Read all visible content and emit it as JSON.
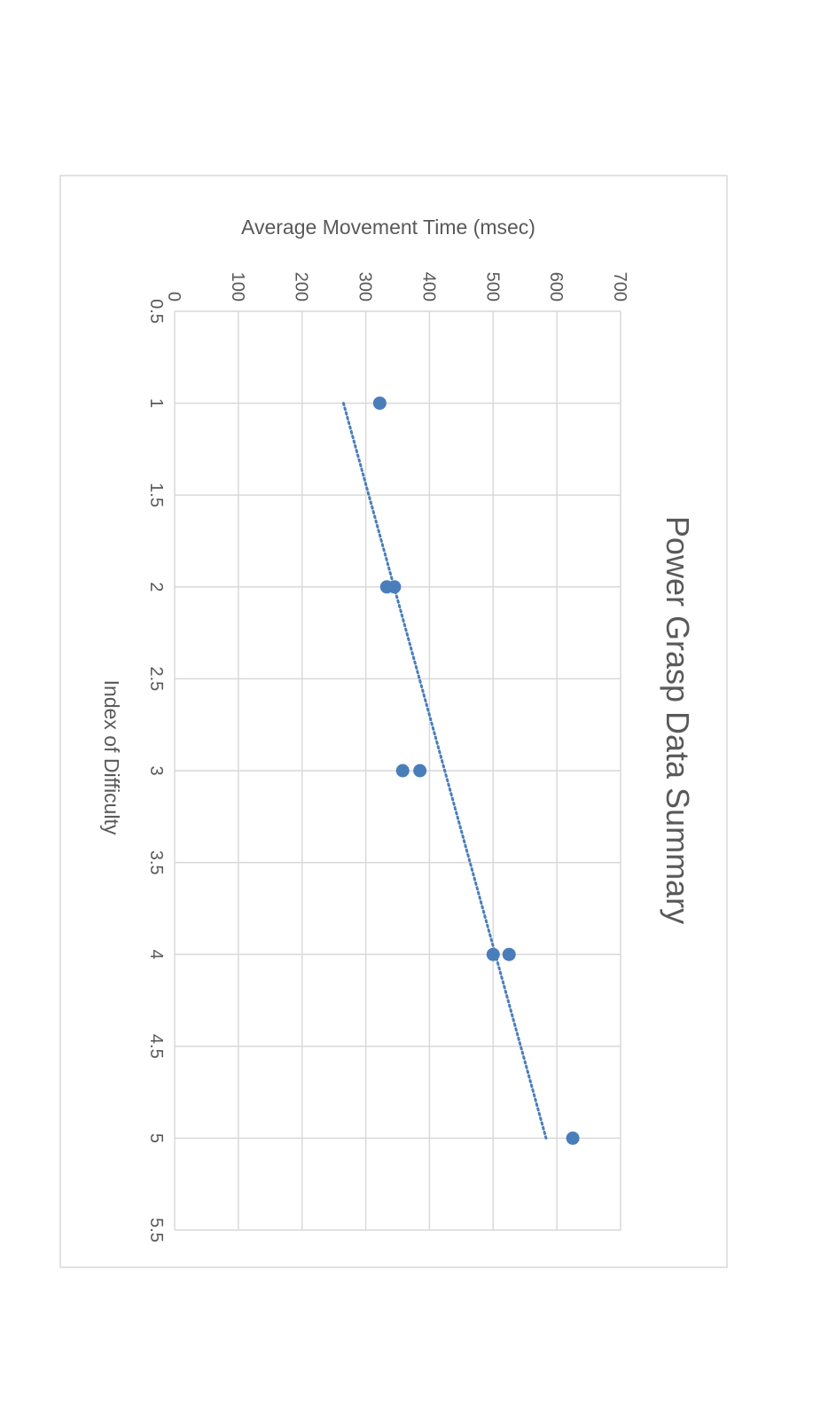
{
  "chart_data": {
    "type": "scatter",
    "title": "Power Grasp Data Summary",
    "xlabel": "Index of Difficulty",
    "ylabel": "Average Movement Time (msec)",
    "xlim": [
      0.5,
      5.5
    ],
    "ylim": [
      0,
      700
    ],
    "x_ticks": [
      "0.5",
      "1",
      "1.5",
      "2",
      "2.5",
      "3",
      "3.5",
      "4",
      "4.5",
      "5",
      "5.5"
    ],
    "y_ticks": [
      "0",
      "100",
      "200",
      "300",
      "400",
      "500",
      "600",
      "700"
    ],
    "grid": true,
    "orientation": "rotated-90-clockwise",
    "marker_color": "#4a7ebb",
    "trendline": {
      "style": "dotted",
      "color": "#4a7ebb",
      "x": [
        1,
        5
      ],
      "y": [
        265,
        583
      ]
    },
    "series": [
      {
        "points": [
          {
            "x": 1,
            "y": 322
          },
          {
            "x": 2,
            "y": 333
          },
          {
            "x": 2,
            "y": 345
          },
          {
            "x": 3,
            "y": 358
          },
          {
            "x": 3,
            "y": 385
          },
          {
            "x": 4,
            "y": 500
          },
          {
            "x": 4,
            "y": 525
          },
          {
            "x": 5,
            "y": 625
          }
        ]
      }
    ]
  }
}
